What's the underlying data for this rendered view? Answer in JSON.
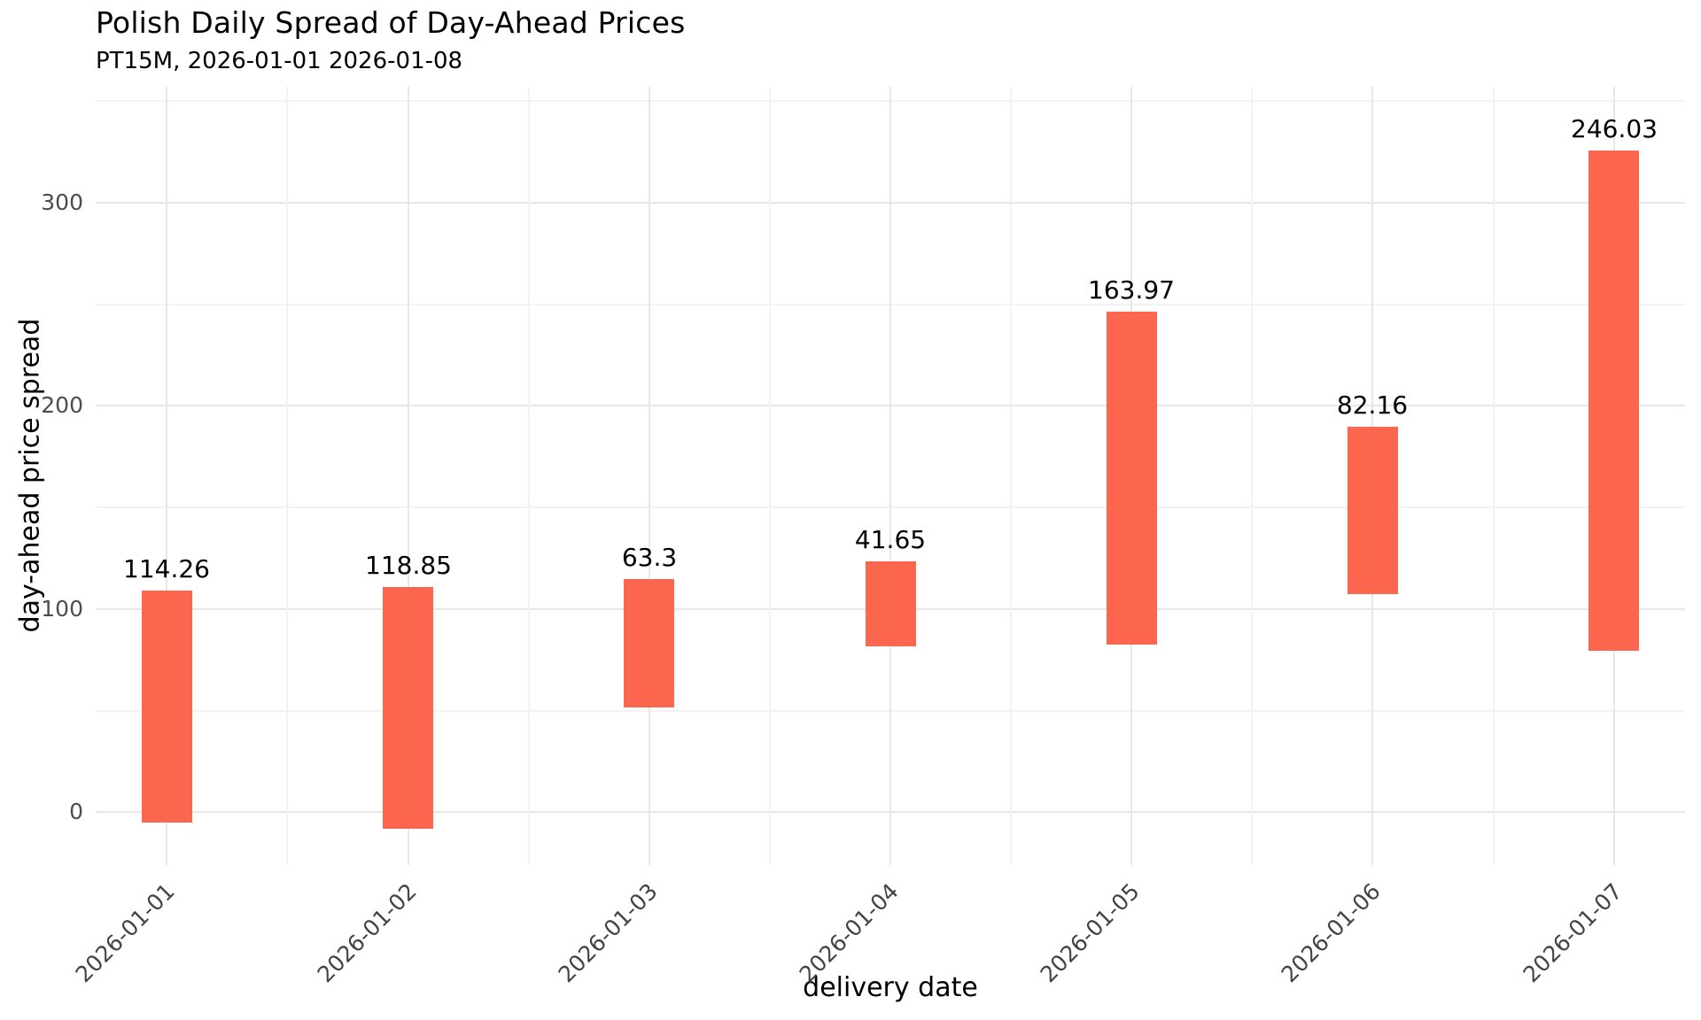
{
  "chart_data": {
    "type": "bar",
    "subtype": "floating-range-bar",
    "title": "Polish Daily Spread of Day-Ahead Prices",
    "subtitle": "PT15M, 2026-01-01 2026-01-08",
    "xlabel": "delivery date",
    "ylabel": "day-ahead price spread",
    "categories": [
      "2026-01-01",
      "2026-01-02",
      "2026-01-03",
      "2026-01-04",
      "2026-01-05",
      "2026-01-06",
      "2026-01-07"
    ],
    "values": [
      114.26,
      118.85,
      63.3,
      41.65,
      163.97,
      82.16,
      246.03
    ],
    "bars": [
      {
        "category": "2026-01-01",
        "low": -5.0,
        "high": 109.26,
        "spread": 114.26,
        "label": "114.26"
      },
      {
        "category": "2026-01-02",
        "low": -8.2,
        "high": 110.65,
        "spread": 118.85,
        "label": "118.85"
      },
      {
        "category": "2026-01-03",
        "low": 51.5,
        "high": 114.8,
        "spread": 63.3,
        "label": "63.3"
      },
      {
        "category": "2026-01-04",
        "low": 81.8,
        "high": 123.45,
        "spread": 41.65,
        "label": "41.65"
      },
      {
        "category": "2026-01-05",
        "low": 82.2,
        "high": 246.17,
        "spread": 163.97,
        "label": "163.97"
      },
      {
        "category": "2026-01-06",
        "low": 107.4,
        "high": 189.56,
        "spread": 82.16,
        "label": "82.16"
      },
      {
        "category": "2026-01-07",
        "low": 79.7,
        "high": 325.73,
        "spread": 246.03,
        "label": "246.03"
      }
    ],
    "ylim": [
      -26,
      357
    ],
    "yticks_major": [
      0,
      100,
      200,
      300
    ],
    "yticks_minor": [
      50,
      150,
      250,
      350
    ],
    "grid": {
      "horizontal": "major+minor",
      "vertical": "major+minor"
    },
    "legend": "none",
    "colors": {
      "bar_fill": "#FC664F",
      "grid_major": "#e7e7e7",
      "grid_minor": "#f3f3f3",
      "tick_label": "#4d4d4d",
      "text": "#000000",
      "background": "#ffffff"
    }
  }
}
